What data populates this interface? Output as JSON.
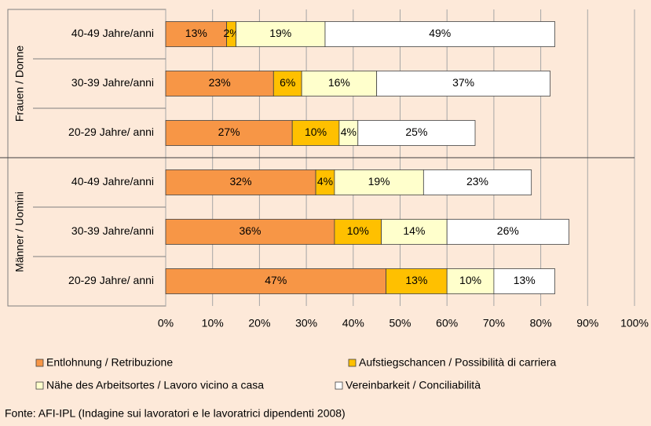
{
  "chart_data": {
    "type": "bar",
    "orientation": "horizontal",
    "stacked": true,
    "groups": [
      "Frauen / Donne",
      "Männer / Uomini"
    ],
    "categories": [
      "40-49 Jahre/anni",
      "30-39 Jahre/anni",
      "20-29 Jahre/ anni",
      "40-49 Jahre/anni",
      "30-39 Jahre/anni",
      "20-29 Jahre/ anni"
    ],
    "series": [
      {
        "name": "Entlohnung / Retribuzione",
        "color": "#f79646",
        "values": [
          13,
          23,
          27,
          32,
          36,
          47
        ],
        "value_labels": [
          "13%",
          "23%",
          "27%",
          "32%",
          "36%",
          "47%"
        ]
      },
      {
        "name": "Aufstiegschancen / Possibilità di carriera",
        "color": "#ffc000",
        "values": [
          2,
          6,
          10,
          4,
          10,
          13
        ],
        "value_labels": [
          "2%",
          "6%",
          "10%",
          "4%",
          "10%",
          "13%"
        ]
      },
      {
        "name": "Nähe des Arbeitsortes / Lavoro vicino a casa",
        "color": "#ffffcc",
        "values": [
          19,
          16,
          4,
          19,
          14,
          10
        ],
        "value_labels": [
          "19%",
          "16%",
          "4%",
          "19%",
          "14%",
          "10%"
        ]
      },
      {
        "name": "Vereinbarkeit / Conciliabilità",
        "color": "#ffffff",
        "values": [
          49,
          37,
          25,
          23,
          26,
          13
        ],
        "value_labels": [
          "49%",
          "37%",
          "25%",
          "23%",
          "26%",
          "13%"
        ]
      }
    ],
    "xlim": [
      0,
      100
    ],
    "xticks": [
      {
        "value": 0,
        "label": "0%"
      },
      {
        "value": 10,
        "label": "10%"
      },
      {
        "value": 20,
        "label": "20%"
      },
      {
        "value": 30,
        "label": "30%"
      },
      {
        "value": 40,
        "label": "40%"
      },
      {
        "value": 50,
        "label": "50%"
      },
      {
        "value": 60,
        "label": "60%"
      },
      {
        "value": 70,
        "label": "70%"
      },
      {
        "value": 80,
        "label": "80%"
      },
      {
        "value": 90,
        "label": "90%"
      },
      {
        "value": 100,
        "label": "100%"
      }
    ],
    "grid": true,
    "legend": "bottom",
    "source": "Fonte: AFI-IPL (Indagine sui lavoratori e le lavoratrici dipendenti 2008)"
  }
}
